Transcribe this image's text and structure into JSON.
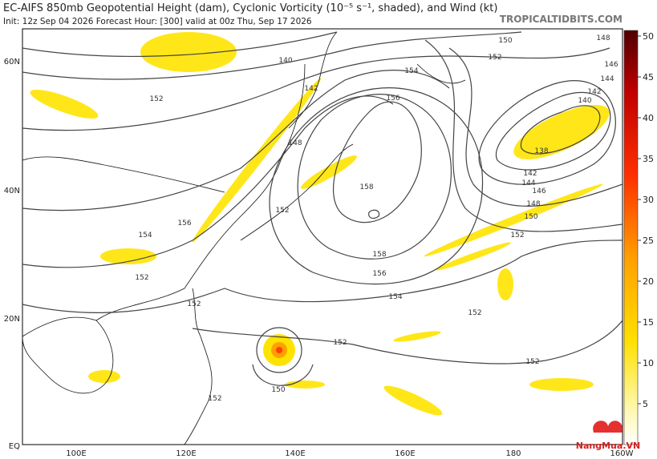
{
  "header": {
    "title": "EC-AIFS 850mb Geopotential Height (dam), Cyclonic Vorticity (10⁻⁵ s⁻¹, shaded), and Wind (kt)",
    "subtitle": "Init: 12z Sep 04 2026   Forecast Hour: [300]   valid at 00z Thu, Sep 17 2026",
    "credit": "TROPICALTIDBITS.COM"
  },
  "map": {
    "lat_labels": [
      "60N",
      "40N",
      "20N",
      "EQ"
    ],
    "lon_labels": [
      "100E",
      "120E",
      "140E",
      "160E",
      "180",
      "160W"
    ],
    "contour_labels": [
      140,
      142,
      148,
      152,
      154,
      152,
      156,
      152,
      150,
      152,
      154,
      156,
      148,
      146,
      144,
      142,
      140,
      138,
      142,
      144,
      146,
      148,
      150,
      152,
      158,
      158,
      156,
      154,
      152,
      152,
      152,
      150,
      152,
      152
    ]
  },
  "colorbar": {
    "ticks": [
      5,
      10,
      15,
      20,
      25,
      30,
      35,
      40,
      45,
      50
    ]
  },
  "watermark": "NangMua.VN"
}
